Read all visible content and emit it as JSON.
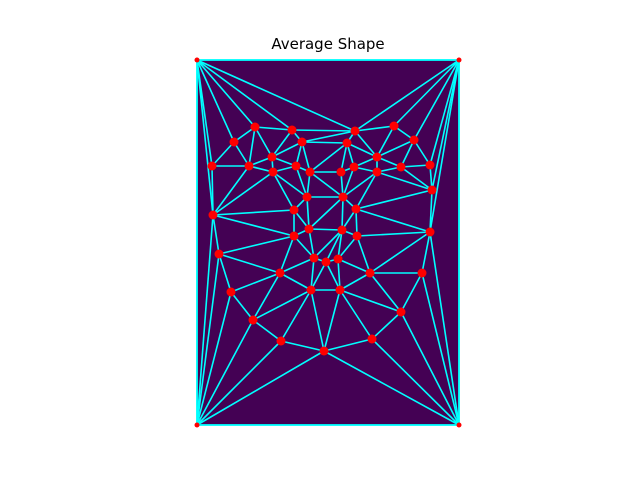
{
  "title": "Average Shape"
}
